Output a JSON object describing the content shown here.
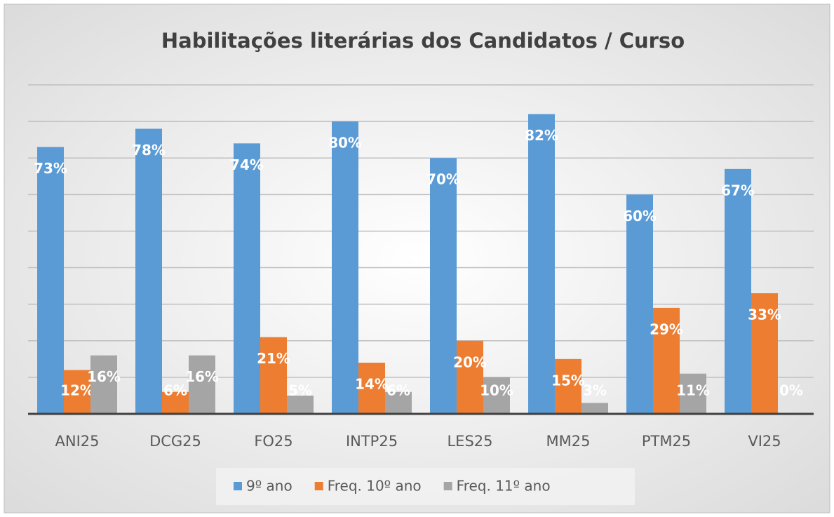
{
  "chart_data": {
    "type": "bar",
    "title": "Habilitações literárias dos Candidatos / Curso",
    "categories": [
      "ANI25",
      "DCG25",
      "FO25",
      "INTP25",
      "LES25",
      "MM25",
      "PTM25",
      "VI25"
    ],
    "series": [
      {
        "name": "9º ano",
        "color": "#5b9bd5",
        "values": [
          73,
          78,
          74,
          80,
          70,
          82,
          60,
          67
        ],
        "value_labels": [
          "73%",
          "78%",
          "74%",
          "80%",
          "70%",
          "82%",
          "60%",
          "67%"
        ]
      },
      {
        "name": "Freq. 10º ano",
        "color": "#ed7d31",
        "values": [
          12,
          6,
          21,
          14,
          20,
          15,
          29,
          33
        ],
        "value_labels": [
          "12%",
          "6%",
          "21%",
          "14%",
          "20%",
          "15%",
          "29%",
          "33%"
        ]
      },
      {
        "name": "Freq. 11º ano",
        "color": "#a5a5a5",
        "values": [
          16,
          16,
          5,
          6,
          10,
          3,
          11,
          0
        ],
        "value_labels": [
          "16%",
          "16%",
          "5%",
          "6%",
          "10%",
          "3%",
          "11%",
          "0%"
        ]
      }
    ],
    "ylim": [
      0,
      90
    ],
    "yticks": [
      0,
      10,
      20,
      30,
      40,
      50,
      60,
      70,
      80,
      90
    ],
    "grid": true,
    "legend": "bottom"
  }
}
